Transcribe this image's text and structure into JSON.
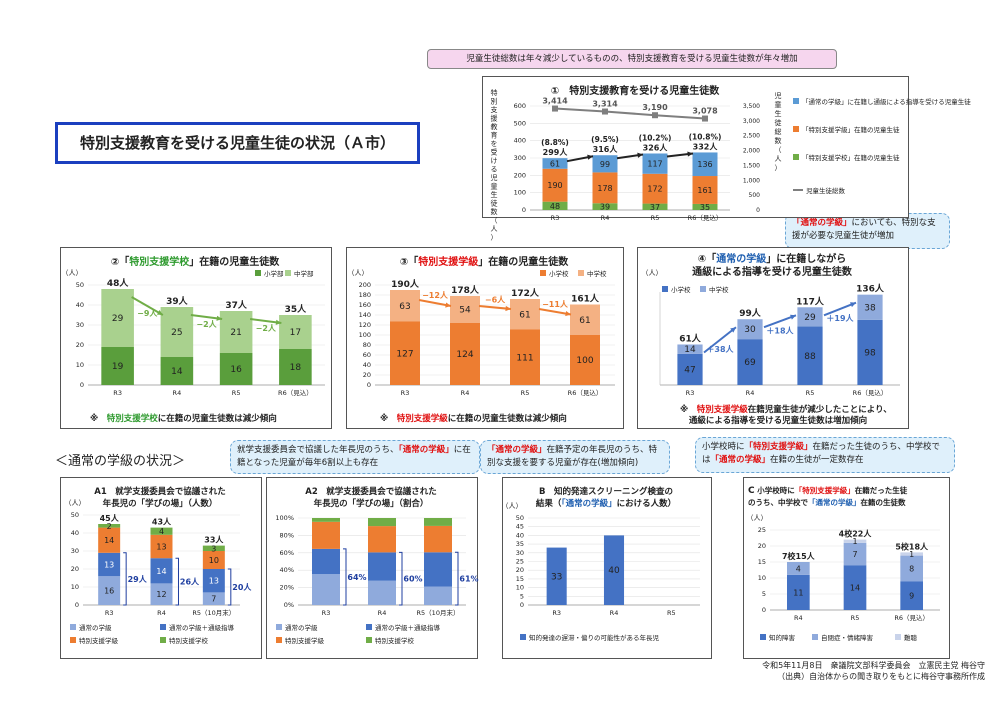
{
  "title": "特別支援教育を受ける児童生徒の状況（Ａ市）",
  "section_heading": "＜通常の学級の状況＞",
  "callouts": {
    "c1": "児童生徒総数は年々減少しているものの、特別支援教育を受ける児童生徒数が年々増加",
    "c4_a": "「通常の学級」",
    "c4_b": "においても、特別な支援が必要な児童生徒が増加",
    "cA_a": "就学支援委員会で協議した年長児のうち、",
    "cA_b": "「通常の学級」",
    "cA_c": "に在籍となった児童が毎年6割以上も存在",
    "cB_a": "「通常の学級」",
    "cB_b": "在籍予定の年長児のうち、特別な支援を要する児童が存在(増加傾向)",
    "cC_a": "小学校時に",
    "cC_b": "「特別支援学級」",
    "cC_c": "在籍だった生徒のうち、中学校では",
    "cC_d": "「通常の学級」",
    "cC_e": "在籍の生徒が一定数存在"
  },
  "notes": {
    "n2_a": "※　",
    "n2_b": "特別支援学校",
    "n2_c": "に在籍の児童生徒数は減少傾向",
    "n3_a": "※　",
    "n3_b": "特別支援学級",
    "n3_c": "に在籍の児童生徒数は減少傾向",
    "n4_a": "※　",
    "n4_b": "特別支援学級",
    "n4_c": "在籍児童生徒が減少したことにより、",
    "n4_d": "通級による指導を受ける児童生徒数は増加傾向"
  },
  "footer": {
    "line1": "令和5年11月8日　衆議院文部科学委員会　立憲民主党 梅谷守",
    "line2": "（出典）自治体からの聞き取りをもとに梅谷守事務所作成"
  },
  "colors": {
    "blue": "#5b9bd5",
    "orange": "#ed7d31",
    "green": "#70ad47",
    "lightgreen": "#a9d18e",
    "darkgreen": "#5a9e3c",
    "peach": "#f4b183",
    "navy": "#4472c4",
    "lightblue": "#8faadc",
    "gray": "#7f7f7f"
  },
  "chart_data": [
    {
      "id": "c1",
      "type": "bar",
      "title": "①　特別支援教育を受ける児童生徒数",
      "ylabel": "特別支援教育を受ける児童生徒数（人）",
      "y2label": "児童生徒総数（人）",
      "categories": [
        "R3",
        "R4",
        "R5",
        "R6（見込）"
      ],
      "ylim": [
        0,
        600
      ],
      "y2lim": [
        0,
        3500
      ],
      "yticks": [
        "0",
        "100",
        "200",
        "300",
        "400",
        "500",
        "600"
      ],
      "y2ticks": [
        "0",
        "500",
        "1,000",
        "1,500",
        "2,000",
        "2,500",
        "3,000",
        "3,500"
      ],
      "series": [
        {
          "name": "「特別支援学校」在籍の児童生徒",
          "values": [
            48,
            39,
            37,
            35
          ]
        },
        {
          "name": "「特別支援学級」在籍の児童生徒",
          "values": [
            190,
            178,
            172,
            161
          ]
        },
        {
          "name": "「通常の学級」に在籍し通級による指導を受ける児童生徒",
          "values": [
            61,
            99,
            117,
            136
          ]
        }
      ],
      "line": {
        "name": "児童生徒総数",
        "values": [
          3414,
          3314,
          3190,
          3078
        ],
        "labels": [
          "3,414",
          "3,314",
          "3,190",
          "3,078"
        ]
      },
      "totals": [
        "299人",
        "316人",
        "326人",
        "332人"
      ],
      "pcts": [
        "(8.8%)",
        "(9.5%)",
        "(10.2%)",
        "(10.8%)"
      ]
    },
    {
      "id": "c2",
      "type": "bar",
      "title_a": "②「",
      "title_b": "特別支援学校",
      "title_c": "」在籍の児童生徒数",
      "unit": "（人）",
      "categories": [
        "R3",
        "R4",
        "R5",
        "R6（見込）"
      ],
      "ylim": [
        0,
        50
      ],
      "yticks": [
        "0",
        "10",
        "20",
        "30",
        "40",
        "50"
      ],
      "series": [
        {
          "name": "小学部",
          "values": [
            19,
            14,
            16,
            18
          ]
        },
        {
          "name": "中学部",
          "values": [
            29,
            25,
            21,
            17
          ]
        }
      ],
      "totals": [
        "48人",
        "39人",
        "37人",
        "35人"
      ],
      "deltas": [
        "−9人",
        "−2人",
        "−2人"
      ]
    },
    {
      "id": "c3",
      "type": "bar",
      "title_a": "③「",
      "title_b": "特別支援学級",
      "title_c": "」在籍の児童生徒数",
      "unit": "（人）",
      "categories": [
        "R3",
        "R4",
        "R5",
        "R6（見込）"
      ],
      "ylim": [
        0,
        200
      ],
      "yticks": [
        "0",
        "20",
        "40",
        "60",
        "80",
        "100",
        "120",
        "140",
        "160",
        "180",
        "200"
      ],
      "series": [
        {
          "name": "小学校",
          "values": [
            127,
            124,
            111,
            100
          ]
        },
        {
          "name": "中学校",
          "values": [
            63,
            54,
            61,
            61
          ]
        }
      ],
      "totals": [
        "190人",
        "178人",
        "172人",
        "161人"
      ],
      "deltas": [
        "−12人",
        "−6人",
        "−11人"
      ]
    },
    {
      "id": "c4",
      "type": "bar",
      "title_a": "④「",
      "title_b": "通常の学級",
      "title_c": "」に在籍しながら",
      "title_d": "通級による指導を受ける児童生徒数",
      "unit": "（人）",
      "categories": [
        "R3",
        "R4",
        "R5",
        "R6（見込）"
      ],
      "ylim": [
        0,
        140
      ],
      "series": [
        {
          "name": "小学校",
          "values": [
            47,
            69,
            88,
            98
          ]
        },
        {
          "name": "中学校",
          "values": [
            14,
            30,
            29,
            38
          ]
        }
      ],
      "totals": [
        "61人",
        "99人",
        "117人",
        "136人"
      ],
      "deltas": [
        "＋38人",
        "＋18人",
        "＋19人"
      ]
    },
    {
      "id": "cA1",
      "type": "bar",
      "title_a": "A1　就学支援委員会で協議された",
      "title_b": "年長児の「学びの場」（人数）",
      "unit": "（人）",
      "categories": [
        "R3",
        "R4",
        "R5（10月末）"
      ],
      "ylim": [
        0,
        50
      ],
      "yticks": [
        "0",
        "10",
        "20",
        "30",
        "40",
        "50"
      ],
      "series": [
        {
          "name": "通常の学級",
          "values": [
            16,
            12,
            7
          ]
        },
        {
          "name": "通常の学級＋通級指導",
          "values": [
            13,
            14,
            13
          ]
        },
        {
          "name": "特別支援学級",
          "values": [
            14,
            13,
            10
          ]
        },
        {
          "name": "特別支援学校",
          "values": [
            2,
            4,
            3
          ]
        }
      ],
      "totals": [
        "45人",
        "43人",
        "33人"
      ],
      "brackets": [
        "29人",
        "26人",
        "20人"
      ]
    },
    {
      "id": "cA2",
      "type": "bar",
      "title_a": "A2　就学支援委員会で協議された",
      "title_b": "年長児の「学びの場」（割合）",
      "categories": [
        "R3",
        "R4",
        "R5（10月末）"
      ],
      "ylim": [
        0,
        100
      ],
      "yticks": [
        "0%",
        "20%",
        "40%",
        "60%",
        "80%",
        "100%"
      ],
      "series": [
        {
          "name": "通常の学級",
          "values": [
            35.6,
            27.9,
            21.2
          ]
        },
        {
          "name": "通常の学級＋通級指導",
          "values": [
            28.9,
            32.6,
            39.4
          ]
        },
        {
          "name": "特別支援学級",
          "values": [
            31.1,
            30.2,
            30.3
          ]
        },
        {
          "name": "特別支援学校",
          "values": [
            4.4,
            9.3,
            9.1
          ]
        }
      ],
      "brackets": [
        "64%",
        "60%",
        "61%"
      ]
    },
    {
      "id": "cB",
      "type": "bar",
      "title_a": "B　知的発達スクリーニング検査の",
      "title_b": "結果（",
      "title_c": "「通常の学級」",
      "title_d": "における人数）",
      "unit": "（人）",
      "categories": [
        "R3",
        "R4",
        "R5"
      ],
      "ylim": [
        0,
        50
      ],
      "yticks": [
        "0",
        "5",
        "10",
        "15",
        "20",
        "25",
        "30",
        "35",
        "40",
        "45",
        "50"
      ],
      "series": [
        {
          "name": "知的発達の遅滞・偏りの可能性がある年長児",
          "values": [
            33,
            40,
            null
          ]
        }
      ]
    },
    {
      "id": "cC",
      "type": "bar",
      "title_a": "C",
      "title_b": "小学校時に",
      "title_c": "「特別支援学級」",
      "title_d": "在籍だった生徒",
      "title_e": "のうち、中学校で",
      "title_f": "「通常の学級」",
      "title_g": "在籍の生徒数",
      "unit": "（人）",
      "categories": [
        "R4",
        "R5",
        "R6（見込）"
      ],
      "ylim": [
        0,
        25
      ],
      "yticks": [
        "0",
        "5",
        "10",
        "15",
        "20",
        "25"
      ],
      "series": [
        {
          "name": "知的障害",
          "values": [
            11,
            14,
            9
          ]
        },
        {
          "name": "自閉症・情緒障害",
          "values": [
            4,
            7,
            8
          ]
        },
        {
          "name": "難聴",
          "values": [
            0,
            1,
            1
          ]
        }
      ],
      "totals": [
        "7校15人",
        "4校22人",
        "5校18人"
      ]
    }
  ]
}
